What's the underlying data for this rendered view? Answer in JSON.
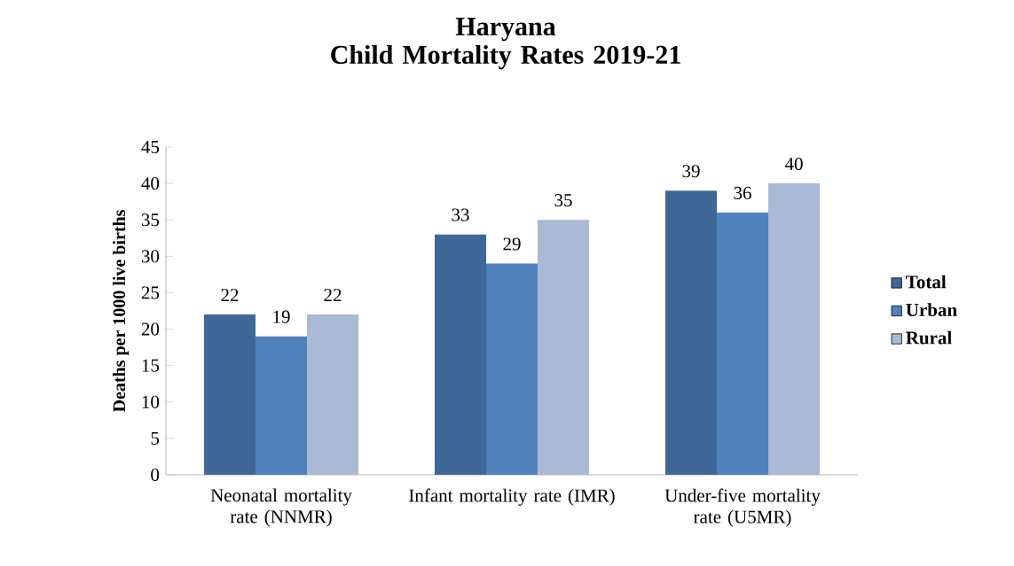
{
  "chart_data": {
    "type": "bar",
    "title": "Haryana",
    "subtitle": "Child Mortality Rates 2019-21",
    "ylabel": "Deaths per 1000 live births",
    "categories": [
      "Neonatal mortality rate (NNMR)",
      "Infant mortality rate (IMR)",
      "Under-five mortality rate (U5MR)"
    ],
    "series": [
      {
        "name": "Total",
        "color": "#3f6797",
        "values": [
          22,
          33,
          39
        ]
      },
      {
        "name": "Urban",
        "color": "#4f81bd",
        "values": [
          19,
          29,
          36
        ]
      },
      {
        "name": "Rural",
        "color": "#aab9d6",
        "values": [
          22,
          35,
          40
        ]
      }
    ],
    "ylim": [
      0,
      45
    ],
    "yticks": [
      0,
      5,
      10,
      15,
      20,
      25,
      30,
      35,
      40,
      45
    ],
    "data_labels": true,
    "legend": "right",
    "grid": false
  }
}
